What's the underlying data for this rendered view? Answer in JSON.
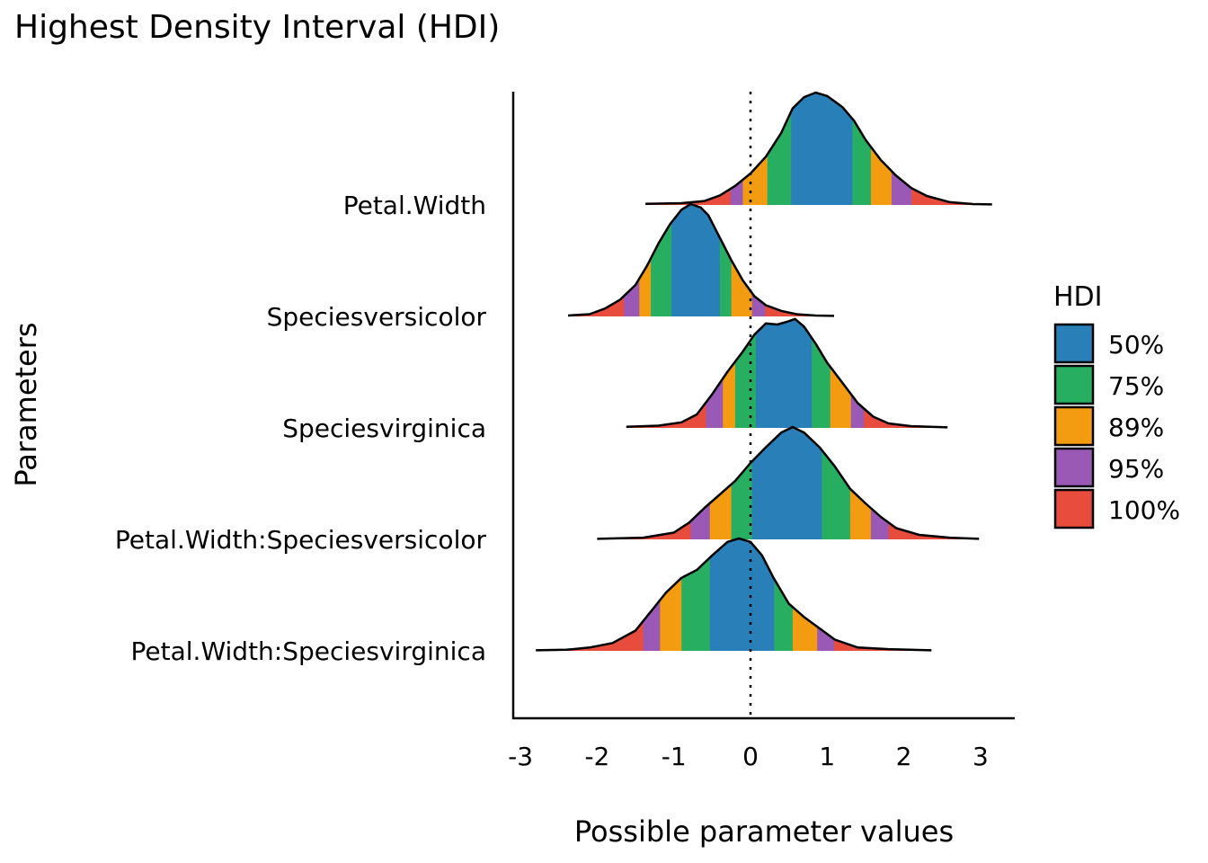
{
  "chart_data": {
    "type": "area",
    "subtype": "ridgeline density with HDI bands",
    "title": "Highest Density Interval (HDI)",
    "xlabel": "Possible parameter values",
    "ylabel": "Parameters",
    "xlim": [
      -3.1,
      3.45
    ],
    "xticks": [
      -3,
      -2,
      -1,
      0,
      1,
      2,
      3
    ],
    "reference_line": {
      "x": 0,
      "style": "dotted"
    },
    "grid": false,
    "legend": {
      "title": "HDI",
      "position": "right",
      "entries": [
        {
          "label": "50%",
          "color": "#2980B9"
        },
        {
          "label": "75%",
          "color": "#27AE60"
        },
        {
          "label": "89%",
          "color": "#F39C12"
        },
        {
          "label": "95%",
          "color": "#9B59B6"
        },
        {
          "label": "100%",
          "color": "#E74C3C"
        }
      ]
    },
    "categories": [
      "Petal.Width",
      "Speciesversicolor",
      "Speciesvirginica",
      "Petal.Width:Speciesversicolor",
      "Petal.Width:Speciesvirginica"
    ],
    "series": [
      {
        "name": "Petal.Width",
        "intervals": {
          "100%": [
            -1.37,
            3.15
          ],
          "95%": [
            -0.26,
            2.1
          ],
          "89%": [
            -0.1,
            1.84
          ],
          "75%": [
            0.22,
            1.57
          ],
          "50%": [
            0.53,
            1.33
          ]
        },
        "density": [
          [
            -1.37,
            0.01
          ],
          [
            -0.9,
            0.016
          ],
          [
            -0.6,
            0.035
          ],
          [
            -0.4,
            0.085
          ],
          [
            -0.2,
            0.17
          ],
          [
            0,
            0.28
          ],
          [
            0.2,
            0.43
          ],
          [
            0.4,
            0.64
          ],
          [
            0.55,
            0.86
          ],
          [
            0.7,
            0.96
          ],
          [
            0.85,
            1.0
          ],
          [
            1.0,
            0.97
          ],
          [
            1.2,
            0.87
          ],
          [
            1.35,
            0.75
          ],
          [
            1.5,
            0.58
          ],
          [
            1.7,
            0.4
          ],
          [
            1.9,
            0.26
          ],
          [
            2.1,
            0.15
          ],
          [
            2.3,
            0.08
          ],
          [
            2.6,
            0.025
          ],
          [
            2.9,
            0.008
          ],
          [
            3.15,
            0.005
          ]
        ]
      },
      {
        "name": "Speciesversicolor",
        "intervals": {
          "100%": [
            -2.38,
            1.09
          ],
          "95%": [
            -1.65,
            0.19
          ],
          "89%": [
            -1.45,
            0.02
          ],
          "75%": [
            -1.3,
            -0.25
          ],
          "50%": [
            -1.03,
            -0.4
          ]
        },
        "density": [
          [
            -2.38,
            0.008
          ],
          [
            -2.1,
            0.02
          ],
          [
            -1.9,
            0.07
          ],
          [
            -1.7,
            0.15
          ],
          [
            -1.5,
            0.28
          ],
          [
            -1.35,
            0.45
          ],
          [
            -1.2,
            0.65
          ],
          [
            -1.05,
            0.82
          ],
          [
            -0.9,
            0.95
          ],
          [
            -0.78,
            1.0
          ],
          [
            -0.65,
            0.97
          ],
          [
            -0.55,
            0.9
          ],
          [
            -0.4,
            0.7
          ],
          [
            -0.25,
            0.5
          ],
          [
            -0.1,
            0.32
          ],
          [
            0.05,
            0.18
          ],
          [
            0.2,
            0.1
          ],
          [
            0.4,
            0.05
          ],
          [
            0.6,
            0.02
          ],
          [
            0.85,
            0.008
          ],
          [
            1.09,
            0.005
          ]
        ]
      },
      {
        "name": "Speciesvirginica",
        "intervals": {
          "100%": [
            -1.62,
            2.57
          ],
          "95%": [
            -0.58,
            1.48
          ],
          "89%": [
            -0.36,
            1.31
          ],
          "75%": [
            -0.2,
            1.04
          ],
          "50%": [
            0.07,
            0.8
          ]
        },
        "density": [
          [
            -1.62,
            0.01
          ],
          [
            -1.2,
            0.02
          ],
          [
            -0.9,
            0.05
          ],
          [
            -0.7,
            0.12
          ],
          [
            -0.5,
            0.3
          ],
          [
            -0.3,
            0.5
          ],
          [
            -0.1,
            0.68
          ],
          [
            0.05,
            0.83
          ],
          [
            0.2,
            0.93
          ],
          [
            0.35,
            0.92
          ],
          [
            0.5,
            0.95
          ],
          [
            0.58,
            0.97
          ],
          [
            0.7,
            0.9
          ],
          [
            0.85,
            0.75
          ],
          [
            1.0,
            0.58
          ],
          [
            1.2,
            0.4
          ],
          [
            1.4,
            0.22
          ],
          [
            1.6,
            0.1
          ],
          [
            1.8,
            0.04
          ],
          [
            2.1,
            0.015
          ],
          [
            2.57,
            0.005
          ]
        ]
      },
      {
        "name": "Petal.Width:Speciesversicolor",
        "intervals": {
          "100%": [
            -2.0,
            2.98
          ],
          "95%": [
            -0.78,
            1.8
          ],
          "89%": [
            -0.53,
            1.57
          ],
          "75%": [
            -0.25,
            1.3
          ],
          "50%": [
            0.02,
            0.93
          ]
        },
        "density": [
          [
            -2.0,
            0.005
          ],
          [
            -1.4,
            0.015
          ],
          [
            -1.0,
            0.06
          ],
          [
            -0.8,
            0.15
          ],
          [
            -0.6,
            0.28
          ],
          [
            -0.4,
            0.4
          ],
          [
            -0.2,
            0.52
          ],
          [
            0,
            0.68
          ],
          [
            0.2,
            0.82
          ],
          [
            0.4,
            0.95
          ],
          [
            0.55,
            1.0
          ],
          [
            0.7,
            0.95
          ],
          [
            0.9,
            0.82
          ],
          [
            1.1,
            0.65
          ],
          [
            1.3,
            0.45
          ],
          [
            1.5,
            0.32
          ],
          [
            1.7,
            0.2
          ],
          [
            1.9,
            0.1
          ],
          [
            2.2,
            0.04
          ],
          [
            2.6,
            0.015
          ],
          [
            2.98,
            0.005
          ]
        ]
      },
      {
        "name": "Petal.Width:Speciesvirginica",
        "intervals": {
          "100%": [
            -2.8,
            2.36
          ],
          "95%": [
            -1.4,
            1.09
          ],
          "89%": [
            -1.18,
            0.87
          ],
          "75%": [
            -0.9,
            0.55
          ],
          "50%": [
            -0.53,
            0.31
          ]
        },
        "density": [
          [
            -2.8,
            0.005
          ],
          [
            -2.4,
            0.01
          ],
          [
            -2.1,
            0.03
          ],
          [
            -1.8,
            0.07
          ],
          [
            -1.5,
            0.18
          ],
          [
            -1.3,
            0.35
          ],
          [
            -1.1,
            0.52
          ],
          [
            -0.9,
            0.65
          ],
          [
            -0.7,
            0.72
          ],
          [
            -0.5,
            0.85
          ],
          [
            -0.3,
            0.97
          ],
          [
            -0.15,
            1.0
          ],
          [
            0,
            0.97
          ],
          [
            0.15,
            0.85
          ],
          [
            0.3,
            0.65
          ],
          [
            0.5,
            0.42
          ],
          [
            0.7,
            0.3
          ],
          [
            0.9,
            0.2
          ],
          [
            1.1,
            0.1
          ],
          [
            1.4,
            0.03
          ],
          [
            1.8,
            0.015
          ],
          [
            2.36,
            0.005
          ]
        ]
      }
    ]
  }
}
